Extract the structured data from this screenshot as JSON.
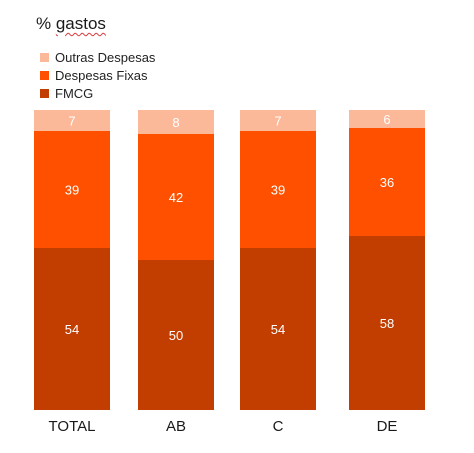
{
  "title": {
    "prefix": "% ",
    "word": "gastos"
  },
  "colors": {
    "outras": "#fbb99a",
    "fixas": "#ff5000",
    "fmcg": "#c23e00"
  },
  "chart_data": {
    "type": "bar",
    "stacked": true,
    "categories": [
      "TOTAL",
      "AB",
      "C",
      "DE"
    ],
    "series": [
      {
        "name": "FMCG",
        "values": [
          54,
          50,
          54,
          58
        ]
      },
      {
        "name": "Despesas Fixas",
        "values": [
          39,
          42,
          39,
          36
        ]
      },
      {
        "name": "Outras Despesas",
        "values": [
          7,
          8,
          7,
          6
        ]
      }
    ],
    "legend_order": [
      "Outras Despesas",
      "Despesas Fixas",
      "FMCG"
    ],
    "legend_position": "top-left",
    "ylim": [
      0,
      100
    ],
    "grid": false
  }
}
